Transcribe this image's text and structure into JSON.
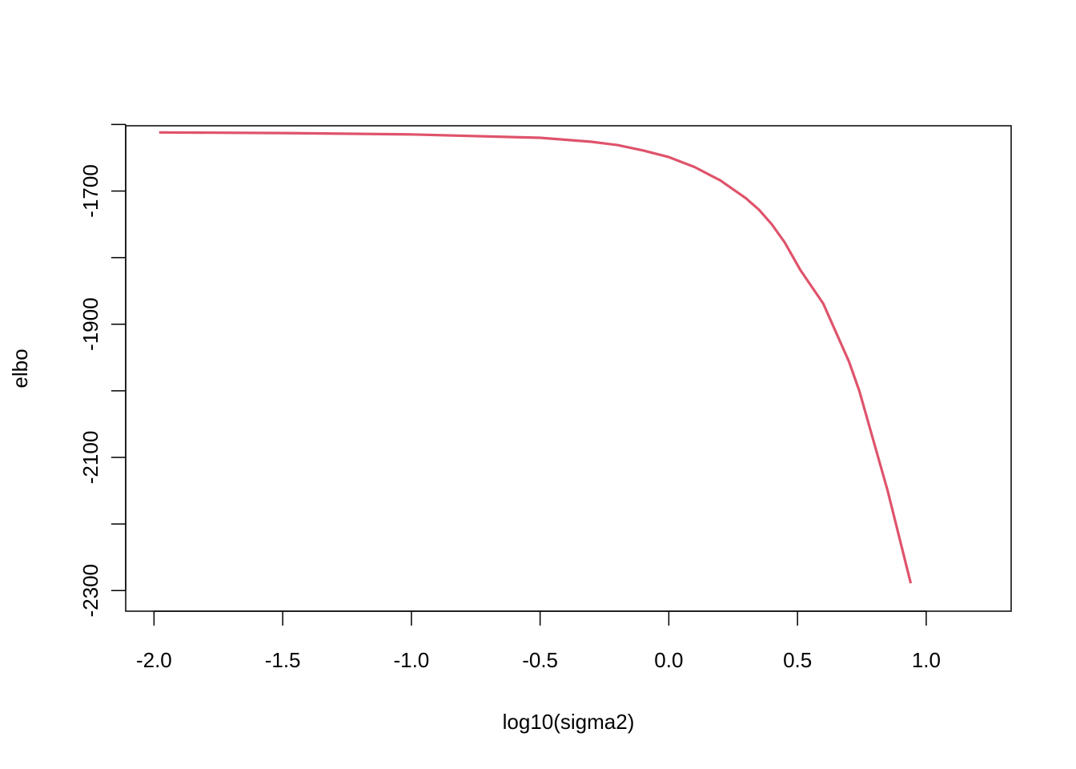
{
  "chart_data": {
    "type": "line",
    "title": "",
    "xlabel": "log10(sigma2)",
    "ylabel": "elbo",
    "xlim": [
      -2.11,
      1.33
    ],
    "ylim": [
      -2331,
      -1602
    ],
    "x_ticks": [
      -2.0,
      -1.5,
      -1.0,
      -0.5,
      0.0,
      0.5,
      1.0
    ],
    "x_tick_labels": [
      "-2.0",
      "-1.5",
      "-1.0",
      "-0.5",
      "0.0",
      "0.5",
      "1.0"
    ],
    "y_ticks": [
      -1600,
      -1700,
      -1800,
      -1900,
      -2000,
      -2100,
      -2200,
      -2300
    ],
    "y_tick_labels": [
      "",
      "-1700",
      "",
      "-1900",
      "",
      "-2100",
      "",
      "-2300"
    ],
    "grid": false,
    "series": [
      {
        "color": "#DF536B",
        "x": [
          -1.98,
          -1.5,
          -1.0,
          -0.5,
          -0.3,
          -0.2,
          -0.1,
          0.0,
          0.1,
          0.2,
          0.3,
          0.35,
          0.4,
          0.45,
          0.51,
          0.6,
          0.7,
          0.74,
          0.85,
          0.94
        ],
        "y": [
          -1612,
          -1613,
          -1615,
          -1620,
          -1626,
          -1631,
          -1639,
          -1649,
          -1664,
          -1684,
          -1711,
          -1728,
          -1750,
          -1777,
          -1818,
          -1869,
          -1956,
          -2000,
          -2150,
          -2289
        ]
      }
    ]
  }
}
